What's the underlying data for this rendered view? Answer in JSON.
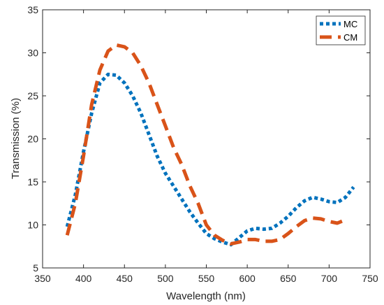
{
  "chart_data": {
    "type": "line",
    "xlabel": "Wavelength (nm)",
    "ylabel": "Transmission (%)",
    "xlim": [
      350,
      750
    ],
    "ylim": [
      5,
      35
    ],
    "xticks": [
      350,
      400,
      450,
      500,
      550,
      600,
      650,
      700,
      750
    ],
    "yticks": [
      5,
      10,
      15,
      20,
      25,
      30,
      35
    ],
    "legend_position": "top-right",
    "grid": false,
    "series": [
      {
        "name": "MC",
        "color": "#0072BD",
        "style": "dotted",
        "points": [
          [
            380,
            9.8
          ],
          [
            390,
            13.5
          ],
          [
            400,
            18.5
          ],
          [
            410,
            23.0
          ],
          [
            420,
            26.5
          ],
          [
            430,
            27.5
          ],
          [
            440,
            27.4
          ],
          [
            450,
            26.5
          ],
          [
            460,
            25.0
          ],
          [
            470,
            23.0
          ],
          [
            480,
            20.5
          ],
          [
            490,
            18.0
          ],
          [
            500,
            16.0
          ],
          [
            510,
            14.5
          ],
          [
            520,
            13.0
          ],
          [
            530,
            11.5
          ],
          [
            540,
            10.2
          ],
          [
            550,
            9.0
          ],
          [
            560,
            8.4
          ],
          [
            570,
            8.0
          ],
          [
            580,
            7.7
          ],
          [
            590,
            8.5
          ],
          [
            600,
            9.3
          ],
          [
            610,
            9.6
          ],
          [
            620,
            9.5
          ],
          [
            630,
            9.6
          ],
          [
            640,
            10.2
          ],
          [
            650,
            11.0
          ],
          [
            660,
            12.0
          ],
          [
            670,
            12.8
          ],
          [
            680,
            13.2
          ],
          [
            690,
            13.0
          ],
          [
            700,
            12.7
          ],
          [
            710,
            12.6
          ],
          [
            720,
            13.2
          ],
          [
            730,
            14.4
          ]
        ]
      },
      {
        "name": "CM",
        "color": "#D95319",
        "style": "dashed",
        "points": [
          [
            380,
            8.8
          ],
          [
            390,
            12.5
          ],
          [
            400,
            18.0
          ],
          [
            410,
            24.0
          ],
          [
            420,
            28.0
          ],
          [
            430,
            30.2
          ],
          [
            440,
            30.9
          ],
          [
            450,
            30.7
          ],
          [
            460,
            30.0
          ],
          [
            470,
            28.5
          ],
          [
            480,
            26.5
          ],
          [
            490,
            24.0
          ],
          [
            500,
            21.5
          ],
          [
            510,
            19.0
          ],
          [
            520,
            17.0
          ],
          [
            530,
            14.5
          ],
          [
            540,
            12.5
          ],
          [
            550,
            10.0
          ],
          [
            560,
            8.8
          ],
          [
            570,
            8.2
          ],
          [
            580,
            7.8
          ],
          [
            590,
            8.0
          ],
          [
            600,
            8.3
          ],
          [
            610,
            8.3
          ],
          [
            620,
            8.1
          ],
          [
            630,
            8.1
          ],
          [
            640,
            8.3
          ],
          [
            650,
            9.0
          ],
          [
            660,
            9.8
          ],
          [
            670,
            10.5
          ],
          [
            680,
            10.8
          ],
          [
            690,
            10.7
          ],
          [
            700,
            10.4
          ],
          [
            710,
            10.2
          ],
          [
            720,
            10.6
          ]
        ]
      }
    ]
  }
}
